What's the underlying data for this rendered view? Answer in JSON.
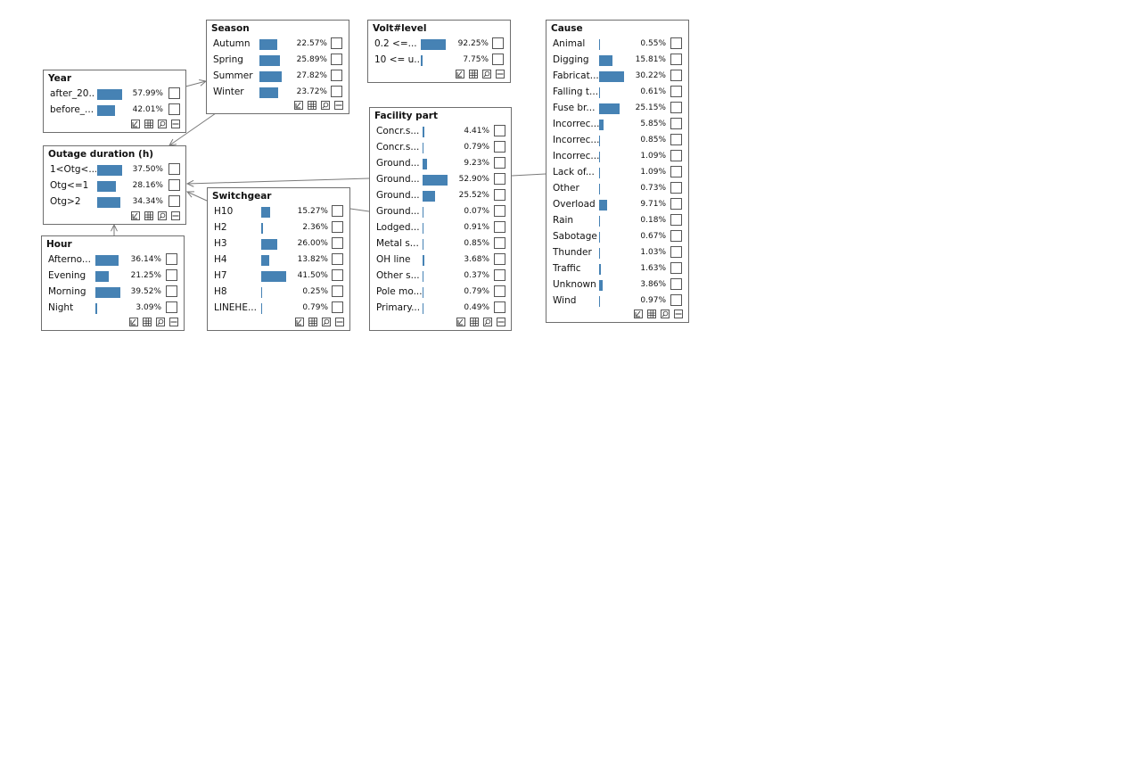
{
  "nodes": {
    "year": {
      "title": "Year",
      "rows": [
        {
          "label": "after_20...",
          "pct": "57.99%",
          "value": 57.99
        },
        {
          "label": "before_...",
          "pct": "42.01%",
          "value": 42.01
        }
      ]
    },
    "season": {
      "title": "Season",
      "rows": [
        {
          "label": "Autumn",
          "pct": "22.57%",
          "value": 22.57
        },
        {
          "label": "Spring",
          "pct": "25.89%",
          "value": 25.89
        },
        {
          "label": "Summer",
          "pct": "27.82%",
          "value": 27.82
        },
        {
          "label": "Winter",
          "pct": "23.72%",
          "value": 23.72
        }
      ]
    },
    "volt": {
      "title": "Volt#level",
      "rows": [
        {
          "label": "0.2 <=...",
          "pct": "92.25%",
          "value": 92.25
        },
        {
          "label": "10 <= u...",
          "pct": "7.75%",
          "value": 7.75
        }
      ]
    },
    "cause": {
      "title": "Cause",
      "rows": [
        {
          "label": "Animal",
          "pct": "0.55%",
          "value": 0.55
        },
        {
          "label": "Digging",
          "pct": "15.81%",
          "value": 15.81
        },
        {
          "label": "Fabricat...",
          "pct": "30.22%",
          "value": 30.22
        },
        {
          "label": "Falling t...",
          "pct": "0.61%",
          "value": 0.61
        },
        {
          "label": "Fuse br...",
          "pct": "25.15%",
          "value": 25.15
        },
        {
          "label": "Incorrec...",
          "pct": "5.85%",
          "value": 5.85
        },
        {
          "label": "Incorrec...",
          "pct": "0.85%",
          "value": 0.85
        },
        {
          "label": "Incorrec...",
          "pct": "1.09%",
          "value": 1.09
        },
        {
          "label": "Lack of...",
          "pct": "1.09%",
          "value": 1.09
        },
        {
          "label": "Other",
          "pct": "0.73%",
          "value": 0.73
        },
        {
          "label": "Overload",
          "pct": "9.71%",
          "value": 9.71
        },
        {
          "label": "Rain",
          "pct": "0.18%",
          "value": 0.18
        },
        {
          "label": "Sabotage",
          "pct": "0.67%",
          "value": 0.67
        },
        {
          "label": "Thunder",
          "pct": "1.03%",
          "value": 1.03
        },
        {
          "label": "Traffic",
          "pct": "1.63%",
          "value": 1.63
        },
        {
          "label": "Unknown",
          "pct": "3.86%",
          "value": 3.86
        },
        {
          "label": "Wind",
          "pct": "0.97%",
          "value": 0.97
        }
      ]
    },
    "outage": {
      "title": "Outage duration (h)",
      "rows": [
        {
          "label": "1<Otg<...",
          "pct": "37.50%",
          "value": 37.5
        },
        {
          "label": "Otg<=1",
          "pct": "28.16%",
          "value": 28.16
        },
        {
          "label": "Otg>2",
          "pct": "34.34%",
          "value": 34.34
        }
      ]
    },
    "facility": {
      "title": "Facility part",
      "rows": [
        {
          "label": "Concr.s...",
          "pct": "4.41%",
          "value": 4.41
        },
        {
          "label": "Concr.s...",
          "pct": "0.79%",
          "value": 0.79
        },
        {
          "label": "Ground...",
          "pct": "9.23%",
          "value": 9.23
        },
        {
          "label": "Ground...",
          "pct": "52.90%",
          "value": 52.9
        },
        {
          "label": "Ground...",
          "pct": "25.52%",
          "value": 25.52
        },
        {
          "label": "Ground...",
          "pct": "0.07%",
          "value": 0.07
        },
        {
          "label": "Lodged...",
          "pct": "0.91%",
          "value": 0.91
        },
        {
          "label": "Metal s...",
          "pct": "0.85%",
          "value": 0.85
        },
        {
          "label": "OH line",
          "pct": "3.68%",
          "value": 3.68
        },
        {
          "label": "Other s...",
          "pct": "0.37%",
          "value": 0.37
        },
        {
          "label": "Pole mo...",
          "pct": "0.79%",
          "value": 0.79
        },
        {
          "label": "Primary...",
          "pct": "0.49%",
          "value": 0.49
        }
      ]
    },
    "switchgear": {
      "title": "Switchgear",
      "rows": [
        {
          "label": "H10",
          "pct": "15.27%",
          "value": 15.27
        },
        {
          "label": "H2",
          "pct": "2.36%",
          "value": 2.36
        },
        {
          "label": "H3",
          "pct": "26.00%",
          "value": 26.0
        },
        {
          "label": "H4",
          "pct": "13.82%",
          "value": 13.82
        },
        {
          "label": "H7",
          "pct": "41.50%",
          "value": 41.5
        },
        {
          "label": "H8",
          "pct": "0.25%",
          "value": 0.25
        },
        {
          "label": "LINEHE...",
          "pct": "0.79%",
          "value": 0.79
        }
      ]
    },
    "hour": {
      "title": "Hour",
      "rows": [
        {
          "label": "Afterno...",
          "pct": "36.14%",
          "value": 36.14
        },
        {
          "label": "Evening",
          "pct": "21.25%",
          "value": 21.25
        },
        {
          "label": "Morning",
          "pct": "39.52%",
          "value": 39.52
        },
        {
          "label": "Night",
          "pct": "3.09%",
          "value": 3.09
        }
      ]
    }
  },
  "colors": {
    "bar": "#4682b4",
    "border": "#6e6e6e",
    "edge": "#7a7a7a"
  },
  "toolbar_icons": [
    "check-icon",
    "grid-icon",
    "zoom-icon",
    "minimize-icon"
  ]
}
